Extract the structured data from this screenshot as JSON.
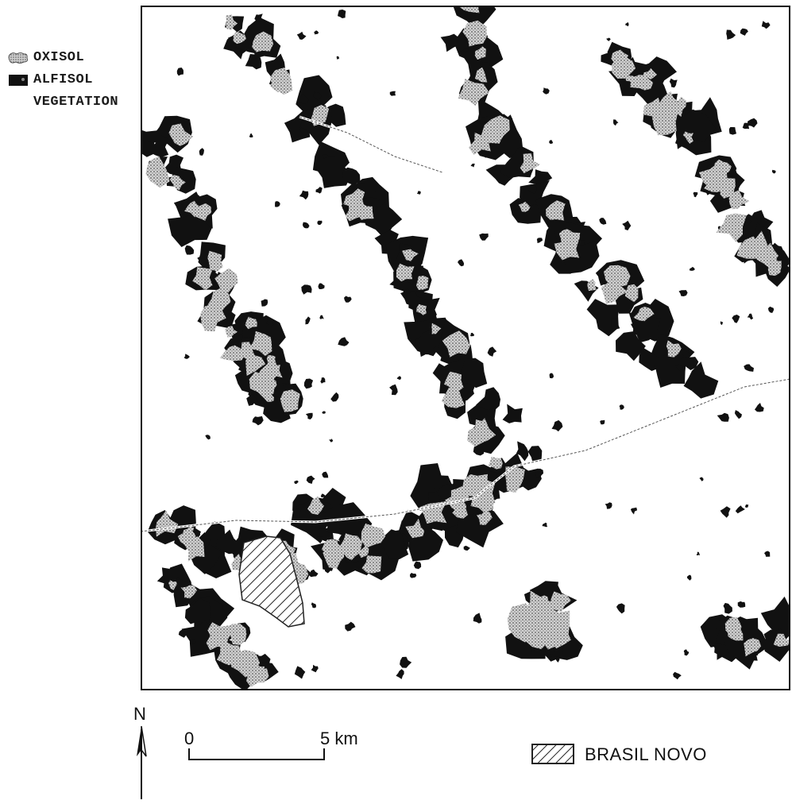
{
  "legend": {
    "items": [
      {
        "label": "OXISOL",
        "pattern": "stipple",
        "color": "#b8b8b8"
      },
      {
        "label": "ALFISOL",
        "pattern": "solid",
        "color": "#111111"
      },
      {
        "label": "VEGETATION",
        "pattern": "none",
        "color": "#ffffff"
      }
    ]
  },
  "north": {
    "label": "N"
  },
  "scale": {
    "zero_label": "0",
    "end_label": "5 km"
  },
  "feature_key": {
    "label": "BRASIL NOVO",
    "pattern": "diagonal-hatch"
  },
  "map": {
    "background_color": "#ffffff",
    "alfisol_color": "#111111",
    "oxisol_color": "#bdbdbd"
  }
}
